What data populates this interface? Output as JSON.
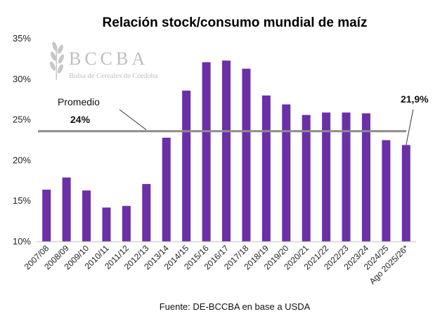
{
  "chart_data": {
    "type": "bar",
    "title": "Relación stock/consumo mundial de maíz",
    "categories": [
      "2007/08",
      "2008/09",
      "2009/10",
      "2010/11",
      "2011/12",
      "2012/13",
      "2013/14",
      "2014/15",
      "2015/16",
      "2016/17",
      "2017/18",
      "2018/19",
      "2019/20",
      "2020/21",
      "2021/22",
      "2022/23",
      "2023/24",
      "2024/25",
      "Ago 2025/26*"
    ],
    "values": [
      16.4,
      17.9,
      16.3,
      14.2,
      14.4,
      17.1,
      22.8,
      28.6,
      32.1,
      32.3,
      31.3,
      28.0,
      26.9,
      25.6,
      25.9,
      25.9,
      25.8,
      22.5,
      21.9
    ],
    "ylim": [
      10,
      35
    ],
    "yticks": [
      "10%",
      "15%",
      "20%",
      "25%",
      "30%",
      "35%"
    ],
    "ytick_values": [
      10,
      15,
      20,
      25,
      30,
      35
    ],
    "bar_color": "#6B2FA8",
    "average": {
      "label": "Promedio",
      "value_label": "24%",
      "value": 23.6,
      "color": "#8C8C8C"
    },
    "last_label": "21,9%",
    "grid": false,
    "source": "Fuente: DE-BCCBA en base a USDA"
  },
  "logo": {
    "name": "BCCBA",
    "subtitle": "Bolsa de Cereales de Córdoba"
  }
}
